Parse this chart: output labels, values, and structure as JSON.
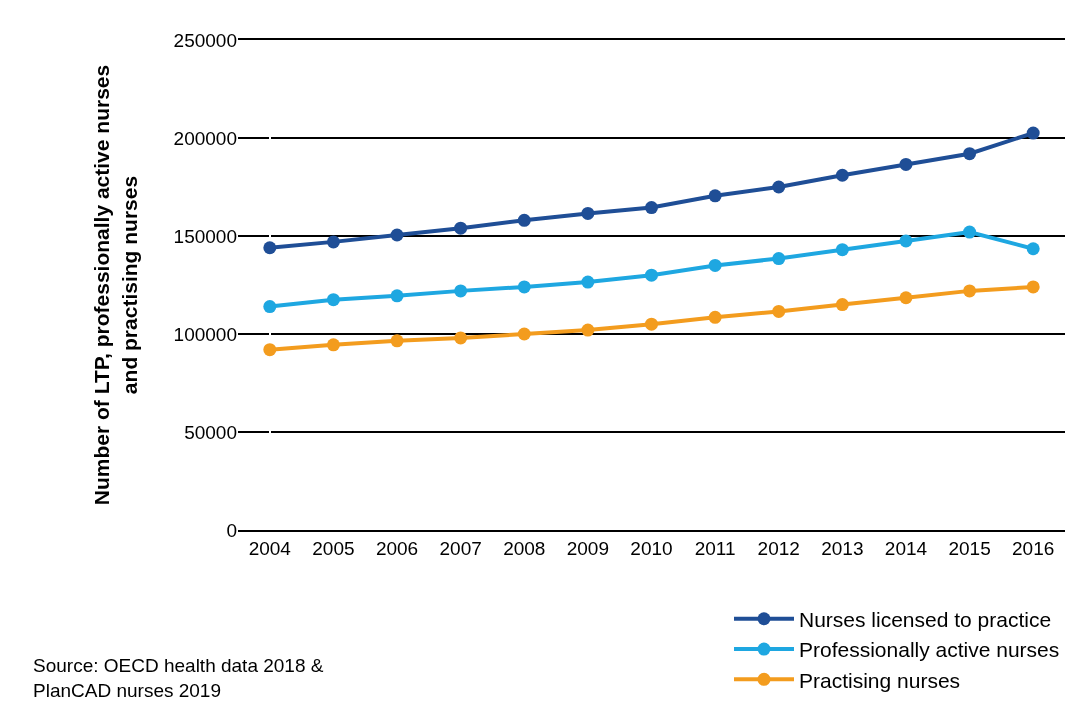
{
  "chart_data": {
    "type": "line",
    "ylabel": "Number of LTP, professionally active nurses and practising nurses",
    "categories": [
      "2004",
      "2005",
      "2006",
      "2007",
      "2008",
      "2009",
      "2010",
      "2011",
      "2012",
      "2013",
      "2014",
      "2015",
      "2016"
    ],
    "series": [
      {
        "name": "Nurses licensed to practice",
        "color": "#1f4e96",
        "values": [
          144000,
          147000,
          150500,
          154000,
          158000,
          161500,
          164500,
          170500,
          175000,
          181000,
          186500,
          192000,
          202500
        ]
      },
      {
        "name": "Professionally active nurses",
        "color": "#1ea7e1",
        "values": [
          114000,
          117500,
          119500,
          122000,
          124000,
          126500,
          130000,
          135000,
          138500,
          143000,
          147500,
          152000,
          143500
        ]
      },
      {
        "name": "Practising nurses",
        "color": "#f39c1e",
        "values": [
          92000,
          94500,
          96500,
          98000,
          100000,
          102000,
          105000,
          108500,
          111500,
          115000,
          118500,
          122000,
          124000
        ]
      }
    ],
    "ylim": [
      0,
      250000
    ],
    "yticks": [
      0,
      50000,
      100000,
      150000,
      200000,
      250000
    ],
    "grid": "y",
    "legend": "bottom right",
    "marker": "circle",
    "line_style": "solid",
    "annotations": [
      "Source: OECD health data 2018 &\nPlanCAD nurses 2019"
    ]
  }
}
